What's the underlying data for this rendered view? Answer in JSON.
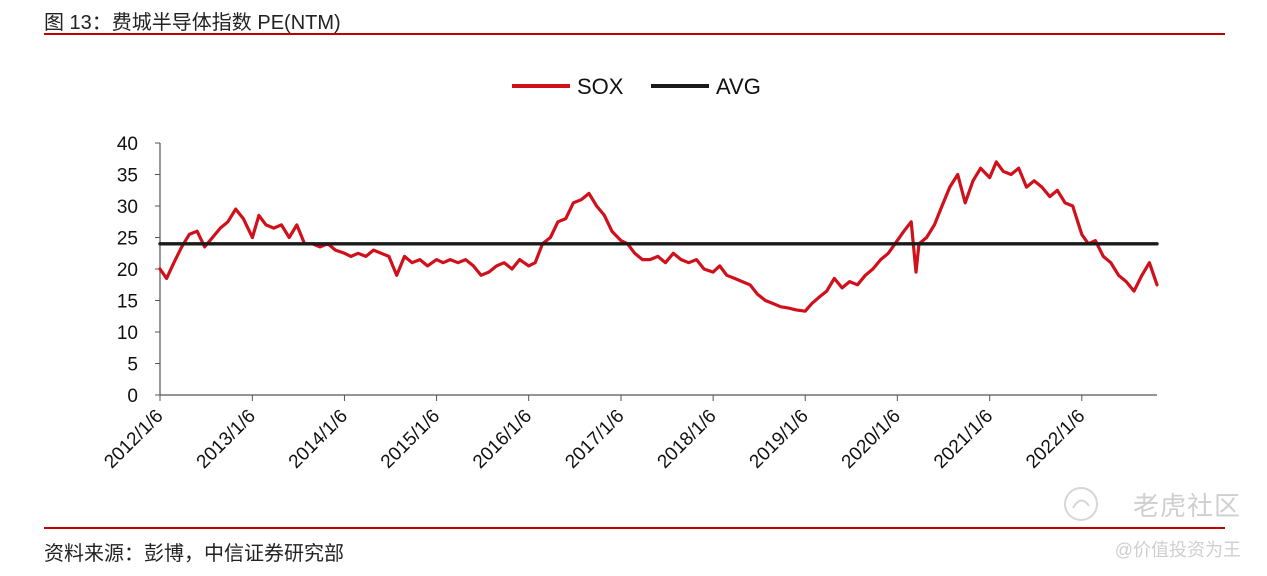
{
  "header": {
    "title": "图 13：费城半导体指数 PE(NTM)"
  },
  "footer": {
    "source": "资料来源：彭博，中信证券研究部"
  },
  "watermark": {
    "brand": "老虎社区",
    "handle": "@价值投资为王"
  },
  "colors": {
    "sox": "#d0101b",
    "avg": "#1a1a1a",
    "rule": "#c00000",
    "axis": "#555555"
  },
  "chart_data": {
    "type": "line",
    "title": "",
    "xlabel": "",
    "ylabel": "",
    "ylim": [
      0,
      40
    ],
    "yticks": [
      "0",
      "5",
      "10",
      "15",
      "20",
      "25",
      "30",
      "35",
      "40"
    ],
    "xlim": [
      "2012-01-06",
      "2022-10-31"
    ],
    "xticks": [
      "2012/1/6",
      "2013/1/6",
      "2014/1/6",
      "2015/1/6",
      "2016/1/6",
      "2017/1/6",
      "2018/1/6",
      "2019/1/6",
      "2020/1/6",
      "2021/1/6",
      "2022/1/6"
    ],
    "legend_position": "top-center",
    "grid": false,
    "series": [
      {
        "name": "SOX",
        "color": "#d0101b",
        "x": [
          "2012-01-06",
          "2012-02-01",
          "2012-03-01",
          "2012-04-01",
          "2012-05-01",
          "2012-06-01",
          "2012-07-01",
          "2012-08-01",
          "2012-09-01",
          "2012-10-01",
          "2012-11-01",
          "2012-12-01",
          "2013-01-06",
          "2013-02-01",
          "2013-03-01",
          "2013-04-01",
          "2013-05-01",
          "2013-06-01",
          "2013-07-01",
          "2013-08-01",
          "2013-09-01",
          "2013-10-01",
          "2013-11-01",
          "2013-12-01",
          "2014-01-06",
          "2014-02-01",
          "2014-03-01",
          "2014-04-01",
          "2014-05-01",
          "2014-06-01",
          "2014-07-01",
          "2014-08-01",
          "2014-09-01",
          "2014-10-01",
          "2014-11-01",
          "2014-12-01",
          "2015-01-06",
          "2015-02-01",
          "2015-03-01",
          "2015-04-01",
          "2015-05-01",
          "2015-06-01",
          "2015-07-01",
          "2015-08-01",
          "2015-09-01",
          "2015-10-01",
          "2015-11-01",
          "2015-12-01",
          "2016-01-06",
          "2016-02-01",
          "2016-03-01",
          "2016-04-01",
          "2016-05-01",
          "2016-06-01",
          "2016-07-01",
          "2016-08-01",
          "2016-09-01",
          "2016-10-01",
          "2016-11-01",
          "2016-12-01",
          "2017-01-06",
          "2017-02-01",
          "2017-03-01",
          "2017-04-01",
          "2017-05-01",
          "2017-06-01",
          "2017-07-01",
          "2017-08-01",
          "2017-09-01",
          "2017-10-01",
          "2017-11-01",
          "2017-12-01",
          "2018-01-06",
          "2018-02-01",
          "2018-03-01",
          "2018-04-01",
          "2018-05-01",
          "2018-06-01",
          "2018-07-01",
          "2018-08-01",
          "2018-09-01",
          "2018-10-01",
          "2018-11-01",
          "2018-12-01",
          "2019-01-06",
          "2019-02-01",
          "2019-03-01",
          "2019-04-01",
          "2019-05-01",
          "2019-06-01",
          "2019-07-01",
          "2019-08-01",
          "2019-09-01",
          "2019-10-01",
          "2019-11-01",
          "2019-12-01",
          "2020-01-06",
          "2020-02-01",
          "2020-03-01",
          "2020-03-20",
          "2020-04-01",
          "2020-05-01",
          "2020-06-01",
          "2020-07-01",
          "2020-08-01",
          "2020-09-01",
          "2020-10-01",
          "2020-11-01",
          "2020-12-01",
          "2021-01-06",
          "2021-02-01",
          "2021-03-01",
          "2021-04-01",
          "2021-05-01",
          "2021-06-01",
          "2021-07-01",
          "2021-08-01",
          "2021-09-01",
          "2021-10-01",
          "2021-11-01",
          "2021-12-01",
          "2022-01-06",
          "2022-02-01",
          "2022-03-01",
          "2022-04-01",
          "2022-05-01",
          "2022-06-01",
          "2022-07-01",
          "2022-08-01",
          "2022-09-01",
          "2022-10-01",
          "2022-10-31"
        ],
        "values": [
          20.0,
          18.5,
          21.0,
          23.5,
          25.5,
          26.0,
          23.5,
          25.0,
          26.5,
          27.5,
          29.5,
          28.0,
          25.0,
          28.5,
          27.0,
          26.5,
          27.0,
          25.0,
          27.0,
          24.0,
          24.0,
          23.5,
          24.0,
          23.0,
          22.5,
          22.0,
          22.5,
          22.0,
          23.0,
          22.5,
          22.0,
          19.0,
          22.0,
          21.0,
          21.5,
          20.5,
          21.5,
          21.0,
          21.5,
          21.0,
          21.5,
          20.5,
          19.0,
          19.5,
          20.5,
          21.0,
          20.0,
          21.5,
          20.5,
          21.0,
          24.0,
          25.0,
          27.5,
          28.0,
          30.5,
          31.0,
          32.0,
          30.0,
          28.5,
          26.0,
          24.5,
          24.0,
          22.5,
          21.5,
          21.5,
          22.0,
          21.0,
          22.5,
          21.5,
          21.0,
          21.5,
          20.0,
          19.5,
          20.5,
          19.0,
          18.5,
          18.0,
          17.5,
          16.0,
          15.0,
          14.5,
          14.0,
          13.8,
          13.5,
          13.3,
          14.5,
          15.5,
          16.5,
          18.5,
          17.0,
          18.0,
          17.5,
          19.0,
          20.0,
          21.5,
          22.5,
          24.5,
          26.0,
          27.5,
          19.5,
          24.0,
          25.0,
          27.0,
          30.0,
          33.0,
          35.0,
          30.5,
          34.0,
          36.0,
          34.5,
          37.0,
          35.5,
          35.0,
          36.0,
          33.0,
          34.0,
          33.0,
          31.5,
          32.5,
          30.5,
          30.0,
          25.5,
          24.0,
          24.5,
          22.0,
          21.0,
          19.0,
          18.0,
          16.5,
          19.0,
          21.0,
          17.5
        ],
        "average": 24.0
      },
      {
        "name": "AVG",
        "color": "#1a1a1a",
        "x": [
          "2012-01-06",
          "2022-10-31"
        ],
        "values": [
          24.0,
          24.0
        ]
      }
    ]
  }
}
